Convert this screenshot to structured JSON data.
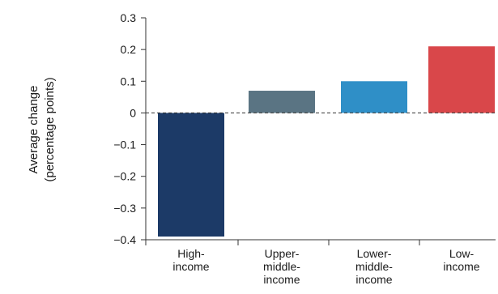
{
  "chart_data": {
    "type": "bar",
    "ylabel_lines": [
      "Average change",
      "(percentage points)"
    ],
    "categories": [
      [
        "High-",
        "income"
      ],
      [
        "Upper-",
        "middle-",
        "income"
      ],
      [
        "Lower-",
        "middle-",
        "income"
      ],
      [
        "Low-",
        "income"
      ]
    ],
    "values": [
      -0.39,
      0.07,
      0.1,
      0.21
    ],
    "ylim": [
      -0.4,
      0.3
    ],
    "yticks": [
      0.3,
      0.2,
      0.1,
      0,
      -0.1,
      -0.2,
      -0.3,
      -0.4
    ],
    "ytick_labels": [
      "0.3",
      "0.2",
      "0.1",
      "0",
      "−0.1",
      "−0.2",
      "−0.3",
      "−0.4"
    ],
    "grid": false,
    "zero_line": "dashed",
    "colors": [
      "#1c3a67",
      "#5a7483",
      "#2f8fc7",
      "#d9474a"
    ]
  }
}
